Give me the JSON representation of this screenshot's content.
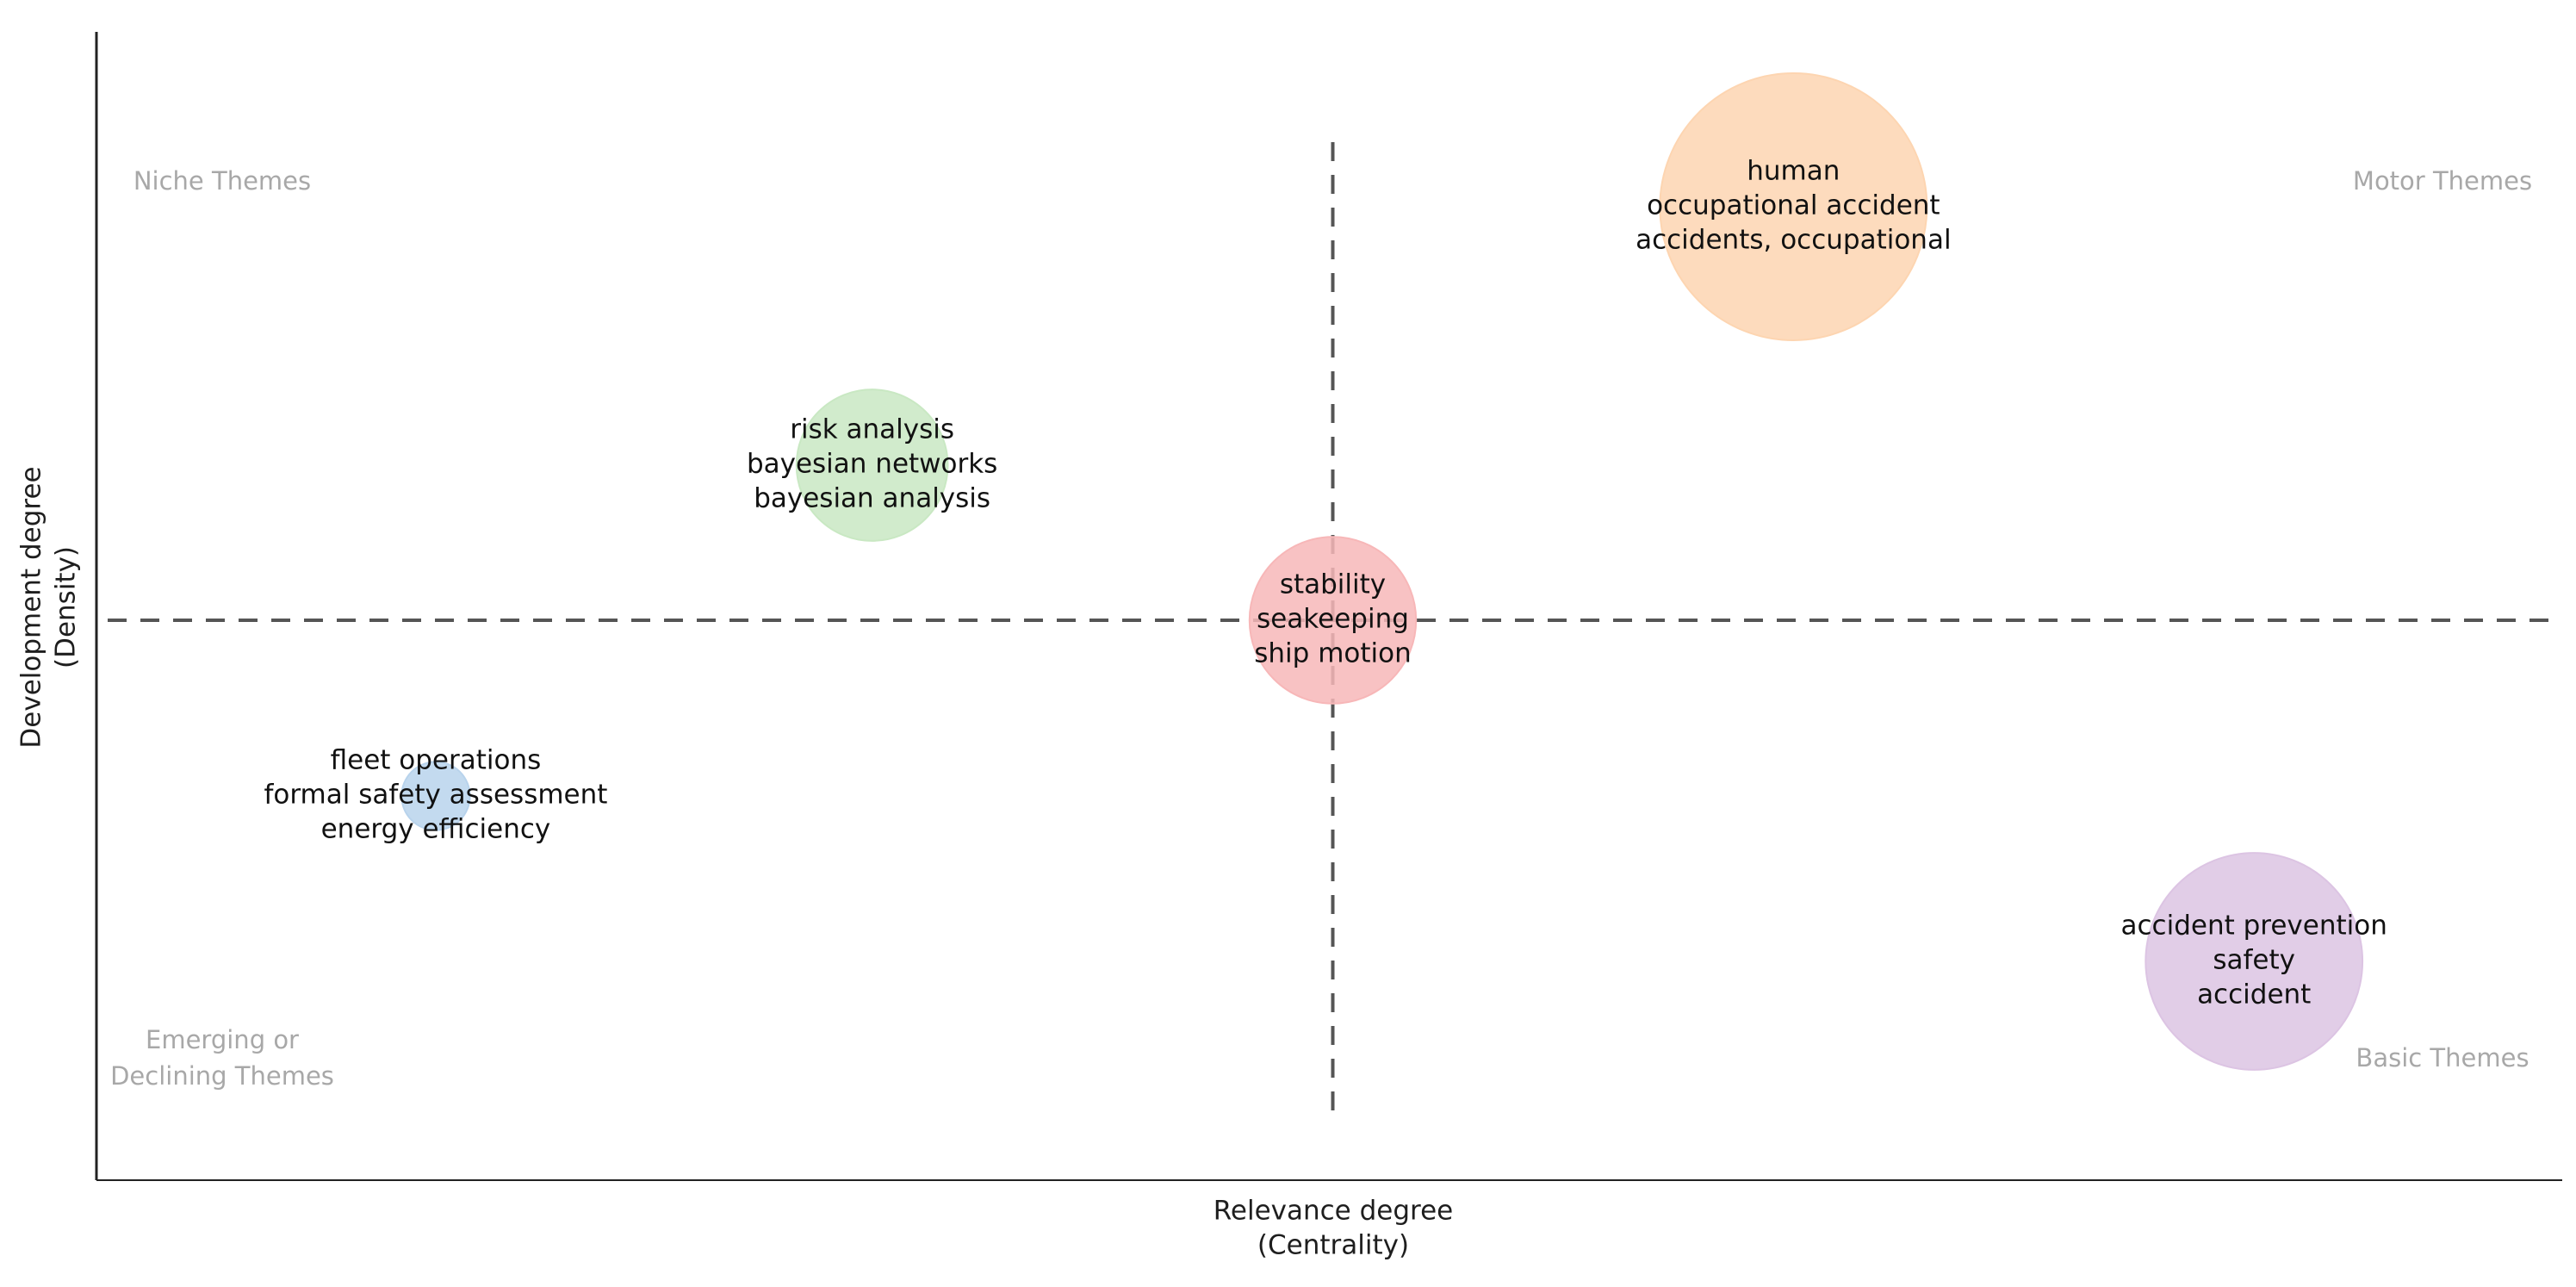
{
  "chart_data": {
    "type": "scatter",
    "title": "",
    "xlabel": [
      "Relevance degree",
      "(Centrality)"
    ],
    "ylabel": [
      "Development degree",
      "(Density)"
    ],
    "quadrant_labels": {
      "top_left": [
        "Niche Themes"
      ],
      "top_right": [
        "Motor Themes"
      ],
      "bottom_left": [
        "Emerging or",
        "Declining Themes"
      ],
      "bottom_right": [
        "Basic Themes"
      ]
    },
    "reference_lines": {
      "x": 0.5,
      "y": 0.5,
      "style": "dashed"
    },
    "grid": false,
    "xlim": [
      0,
      1
    ],
    "ylim": [
      0,
      1
    ],
    "clusters": [
      {
        "labels": [
          "human",
          "occupational accident",
          "accidents, occupational"
        ],
        "x": 0.69,
        "y": 0.9,
        "size": 1.0,
        "color": "#fdd5b1"
      },
      {
        "labels": [
          "risk analysis",
          "bayesian networks",
          "bayesian analysis"
        ],
        "x": 0.31,
        "y": 0.65,
        "size": 0.26,
        "color": "#c9e8c3"
      },
      {
        "labels": [
          "stability",
          "seakeeping",
          "ship motion"
        ],
        "x": 0.5,
        "y": 0.5,
        "size": 0.33,
        "color": "#f7b7b8"
      },
      {
        "labels": [
          "fleet operations",
          "formal safety assessment",
          "energy efficiency"
        ],
        "x": 0.13,
        "y": 0.33,
        "size": 0.025,
        "color": "#b8d3ec"
      },
      {
        "labels": [
          "accident prevention",
          "safety",
          "accident"
        ],
        "x": 0.88,
        "y": 0.17,
        "size": 0.62,
        "color": "#dcc4e3"
      }
    ],
    "colors": {
      "axis": "#222222",
      "reference_line": "#555555",
      "quadrant_label": "#a8a8a8"
    }
  }
}
